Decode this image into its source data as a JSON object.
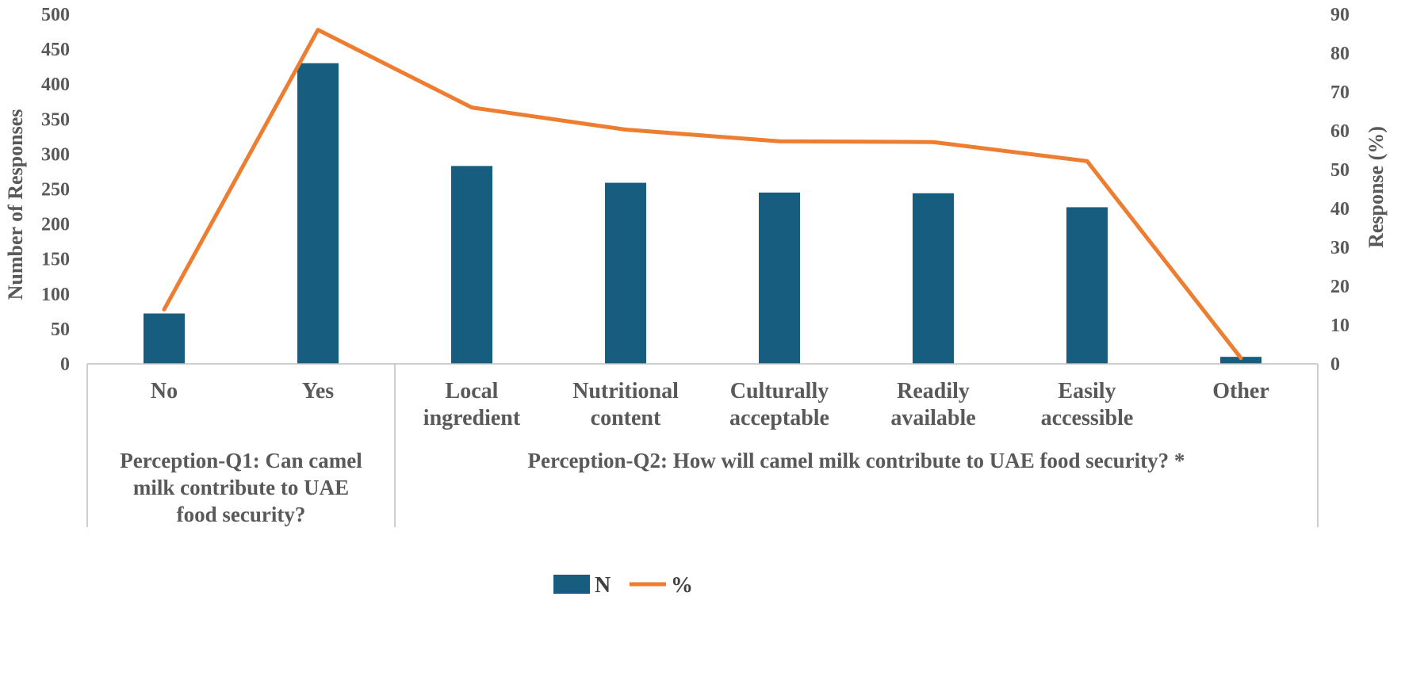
{
  "chart_data": {
    "type": "bar",
    "categories": [
      [
        "No"
      ],
      [
        "Yes"
      ],
      [
        "Local",
        "ingredient"
      ],
      [
        "Nutritional",
        "content"
      ],
      [
        "Culturally",
        "acceptable"
      ],
      [
        "Readily",
        "available"
      ],
      [
        "Easily",
        "accessible"
      ],
      [
        "Other"
      ]
    ],
    "groups": [
      {
        "lines": [
          "Perception-Q1: Can camel",
          "milk contribute to UAE",
          "food security?"
        ],
        "span": [
          0,
          1
        ]
      },
      {
        "lines": [
          "Perception-Q2: How will camel milk contribute to UAE food security? *"
        ],
        "span": [
          2,
          7
        ]
      }
    ],
    "series": [
      {
        "name": "N",
        "kind": "bar",
        "axis": "left",
        "color": "#175D80",
        "values": [
          72,
          430,
          283,
          259,
          245,
          244,
          224,
          10
        ]
      },
      {
        "name": "%",
        "kind": "line",
        "axis": "right",
        "color": "#ED7D31",
        "values": [
          14,
          86,
          66,
          60.3,
          57.3,
          57.1,
          52.2,
          1.5
        ]
      }
    ],
    "ylabel": "Number of Responses",
    "y2label": "Response (%)",
    "ylim": [
      0,
      500
    ],
    "y2lim": [
      0,
      90
    ],
    "yticks": [
      "0",
      "50",
      "100",
      "150",
      "200",
      "250",
      "300",
      "350",
      "400",
      "450",
      "500"
    ],
    "y2ticks": [
      "0",
      "10",
      "20",
      "30",
      "40",
      "50",
      "60",
      "70",
      "80",
      "90"
    ],
    "legend": {
      "position": "bottom",
      "items": [
        "N",
        "%"
      ]
    }
  }
}
